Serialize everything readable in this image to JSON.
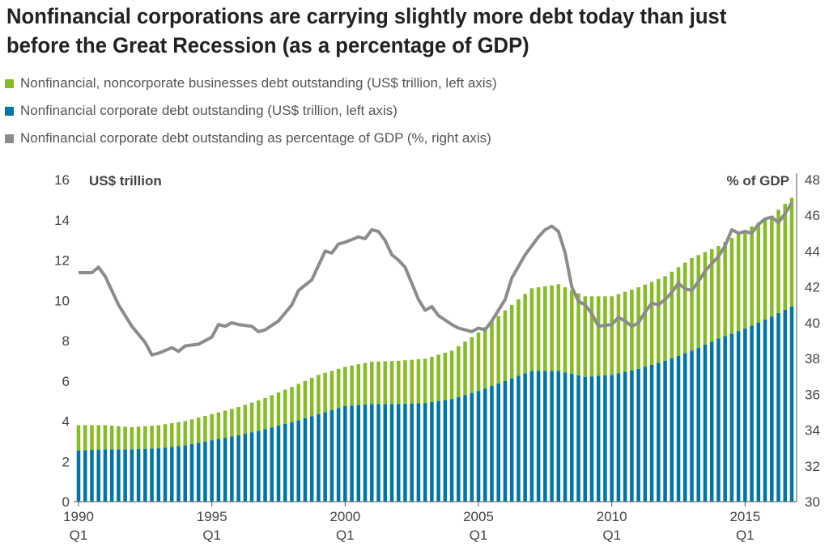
{
  "title": "Nonfinancial corporations are carrying slightly more debt today than just before the Great Recession (as a percentage of GDP)",
  "legend": [
    {
      "label": "Nonfinancial, noncorporate businesses debt outstanding (US$ trillion, left axis)",
      "color": "#86bc25"
    },
    {
      "label": "Nonfinancial corporate debt outstanding (US$ trillion, left axis)",
      "color": "#0076a8"
    },
    {
      "label": "Nonfinancial corporate debt outstanding as percentage of GDP (%, right axis)",
      "color": "#8c8c8c"
    }
  ],
  "chart_data": {
    "type": "bar",
    "stacked": true,
    "left_axis_title": "US$ trillion",
    "right_axis_title": "% of GDP",
    "ylim_left": [
      0,
      16
    ],
    "ylim_right": [
      30,
      48
    ],
    "left_ticks": [
      0,
      2,
      4,
      6,
      8,
      10,
      12,
      14,
      16
    ],
    "right_ticks": [
      30,
      32,
      34,
      36,
      38,
      40,
      42,
      44,
      46,
      48
    ],
    "x_tick_labels": [
      {
        "year": "1990",
        "q": "Q1"
      },
      {
        "year": "1995",
        "q": "Q1"
      },
      {
        "year": "2000",
        "q": "Q1"
      },
      {
        "year": "2005",
        "q": "Q1"
      },
      {
        "year": "2010",
        "q": "Q1"
      },
      {
        "year": "2015",
        "q": "Q1"
      }
    ],
    "x_tick_years": [
      1990,
      1995,
      2000,
      2005,
      2010,
      2015
    ],
    "grid": false,
    "legend_position": "top-left",
    "series": [
      {
        "name": "Nonfinancial corporate debt outstanding (US$ trillion, left axis)",
        "role": "bar-bottom",
        "color": "#0076a8",
        "points": [
          [
            1990.0,
            2.55
          ],
          [
            1991.0,
            2.6
          ],
          [
            1992.0,
            2.6
          ],
          [
            1993.0,
            2.65
          ],
          [
            1994.0,
            2.8
          ],
          [
            1995.0,
            3.05
          ],
          [
            1996.0,
            3.3
          ],
          [
            1997.0,
            3.6
          ],
          [
            1998.0,
            3.95
          ],
          [
            1999.0,
            4.35
          ],
          [
            2000.0,
            4.75
          ],
          [
            2001.0,
            4.85
          ],
          [
            2002.0,
            4.85
          ],
          [
            2003.0,
            4.9
          ],
          [
            2004.0,
            5.1
          ],
          [
            2005.0,
            5.5
          ],
          [
            2006.0,
            6.0
          ],
          [
            2007.0,
            6.5
          ],
          [
            2008.0,
            6.5
          ],
          [
            2009.0,
            6.2
          ],
          [
            2010.0,
            6.3
          ],
          [
            2011.0,
            6.6
          ],
          [
            2012.0,
            7.0
          ],
          [
            2013.0,
            7.5
          ],
          [
            2014.0,
            8.1
          ],
          [
            2015.0,
            8.6
          ],
          [
            2016.0,
            9.2
          ],
          [
            2016.75,
            9.7
          ]
        ]
      },
      {
        "name": "Nonfinancial, noncorporate businesses debt outstanding (US$ trillion, left axis)",
        "role": "bar-top",
        "color": "#86bc25",
        "points": [
          [
            1990.0,
            1.25
          ],
          [
            1991.0,
            1.2
          ],
          [
            1992.0,
            1.1
          ],
          [
            1993.0,
            1.15
          ],
          [
            1994.0,
            1.2
          ],
          [
            1995.0,
            1.3
          ],
          [
            1996.0,
            1.4
          ],
          [
            1997.0,
            1.55
          ],
          [
            1998.0,
            1.75
          ],
          [
            1999.0,
            1.95
          ],
          [
            2000.0,
            1.95
          ],
          [
            2001.0,
            2.1
          ],
          [
            2002.0,
            2.15
          ],
          [
            2003.0,
            2.2
          ],
          [
            2004.0,
            2.4
          ],
          [
            2005.0,
            2.9
          ],
          [
            2006.0,
            3.5
          ],
          [
            2007.0,
            4.1
          ],
          [
            2008.0,
            4.3
          ],
          [
            2009.0,
            4.0
          ],
          [
            2010.0,
            3.9
          ],
          [
            2011.0,
            4.05
          ],
          [
            2012.0,
            4.2
          ],
          [
            2013.0,
            4.6
          ],
          [
            2014.0,
            4.6
          ],
          [
            2015.0,
            4.9
          ],
          [
            2016.0,
            5.0
          ],
          [
            2016.75,
            5.4
          ]
        ]
      },
      {
        "name": "Nonfinancial corporate debt outstanding as percentage of GDP (%, right axis)",
        "role": "line-right",
        "color": "#8c8c8c",
        "points": [
          [
            1990.0,
            42.8
          ],
          [
            1990.5,
            42.8
          ],
          [
            1990.75,
            43.1
          ],
          [
            1991.0,
            42.6
          ],
          [
            1991.5,
            41.0
          ],
          [
            1992.0,
            39.8
          ],
          [
            1992.5,
            38.9
          ],
          [
            1992.75,
            38.2
          ],
          [
            1993.0,
            38.3
          ],
          [
            1993.5,
            38.6
          ],
          [
            1993.75,
            38.4
          ],
          [
            1994.0,
            38.7
          ],
          [
            1994.5,
            38.8
          ],
          [
            1995.0,
            39.2
          ],
          [
            1995.25,
            39.9
          ],
          [
            1995.5,
            39.8
          ],
          [
            1995.75,
            40.0
          ],
          [
            1996.0,
            39.9
          ],
          [
            1996.5,
            39.8
          ],
          [
            1996.75,
            39.5
          ],
          [
            1997.0,
            39.6
          ],
          [
            1997.5,
            40.1
          ],
          [
            1998.0,
            41.0
          ],
          [
            1998.25,
            41.8
          ],
          [
            1998.75,
            42.4
          ],
          [
            1999.0,
            43.2
          ],
          [
            1999.25,
            44.0
          ],
          [
            1999.5,
            43.9
          ],
          [
            1999.75,
            44.4
          ],
          [
            2000.0,
            44.5
          ],
          [
            2000.5,
            44.8
          ],
          [
            2000.75,
            44.7
          ],
          [
            2001.0,
            45.2
          ],
          [
            2001.25,
            45.1
          ],
          [
            2001.5,
            44.6
          ],
          [
            2001.75,
            43.8
          ],
          [
            2002.0,
            43.5
          ],
          [
            2002.25,
            43.1
          ],
          [
            2002.5,
            42.2
          ],
          [
            2002.75,
            41.3
          ],
          [
            2003.0,
            40.7
          ],
          [
            2003.25,
            40.9
          ],
          [
            2003.5,
            40.4
          ],
          [
            2004.0,
            39.9
          ],
          [
            2004.25,
            39.7
          ],
          [
            2004.5,
            39.6
          ],
          [
            2004.75,
            39.5
          ],
          [
            2005.0,
            39.7
          ],
          [
            2005.25,
            39.6
          ],
          [
            2005.5,
            40.1
          ],
          [
            2006.0,
            41.3
          ],
          [
            2006.25,
            42.5
          ],
          [
            2006.75,
            43.8
          ],
          [
            2007.0,
            44.3
          ],
          [
            2007.25,
            44.8
          ],
          [
            2007.5,
            45.2
          ],
          [
            2007.75,
            45.4
          ],
          [
            2008.0,
            45.1
          ],
          [
            2008.25,
            43.9
          ],
          [
            2008.5,
            42.0
          ],
          [
            2008.75,
            41.2
          ],
          [
            2009.0,
            41.0
          ],
          [
            2009.25,
            40.5
          ],
          [
            2009.5,
            39.8
          ],
          [
            2010.0,
            39.9
          ],
          [
            2010.25,
            40.3
          ],
          [
            2010.5,
            40.1
          ],
          [
            2010.75,
            39.8
          ],
          [
            2011.0,
            40.0
          ],
          [
            2011.25,
            40.6
          ],
          [
            2011.5,
            41.1
          ],
          [
            2011.75,
            41.0
          ],
          [
            2012.0,
            41.3
          ],
          [
            2012.25,
            41.7
          ],
          [
            2012.5,
            42.2
          ],
          [
            2012.75,
            41.9
          ],
          [
            2013.0,
            41.8
          ],
          [
            2013.25,
            42.3
          ],
          [
            2013.5,
            42.9
          ],
          [
            2013.75,
            43.3
          ],
          [
            2014.0,
            43.7
          ],
          [
            2014.25,
            44.3
          ],
          [
            2014.5,
            45.2
          ],
          [
            2014.75,
            45.0
          ],
          [
            2015.0,
            45.1
          ],
          [
            2015.25,
            45.0
          ],
          [
            2015.5,
            45.5
          ],
          [
            2015.75,
            45.8
          ],
          [
            2016.0,
            45.9
          ],
          [
            2016.25,
            45.6
          ],
          [
            2016.5,
            46.1
          ],
          [
            2016.75,
            46.7
          ]
        ]
      }
    ]
  }
}
